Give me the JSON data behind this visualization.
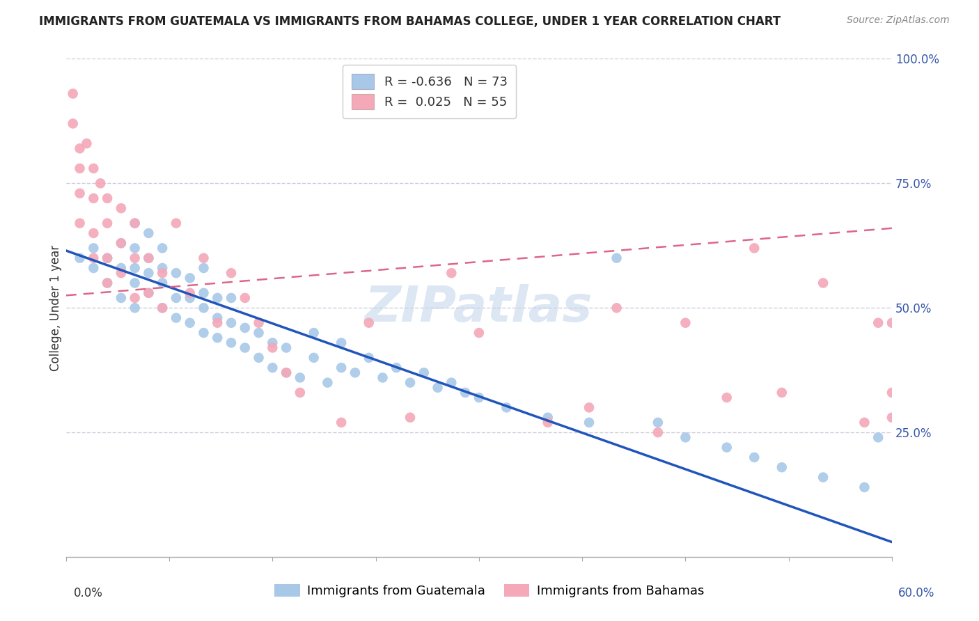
{
  "title": "IMMIGRANTS FROM GUATEMALA VS IMMIGRANTS FROM BAHAMAS COLLEGE, UNDER 1 YEAR CORRELATION CHART",
  "source": "Source: ZipAtlas.com",
  "ylabel": "College, Under 1 year",
  "legend_labels": [
    "Immigrants from Guatemala",
    "Immigrants from Bahamas"
  ],
  "legend_R": [
    -0.636,
    0.025
  ],
  "legend_N": [
    73,
    55
  ],
  "xlim": [
    0.0,
    0.6
  ],
  "ylim": [
    0.0,
    1.0
  ],
  "yticks": [
    0.25,
    0.5,
    0.75,
    1.0
  ],
  "ytick_labels": [
    "25.0%",
    "50.0%",
    "75.0%",
    "100.0%"
  ],
  "blue_color": "#a8c8e8",
  "pink_color": "#f4a8b8",
  "blue_line_color": "#2255bb",
  "pink_line_color": "#dd6688",
  "grid_color": "#ccccdd",
  "background_color": "#ffffff",
  "watermark_text": "ZIPatlas",
  "blue_scatter_x": [
    0.01,
    0.02,
    0.02,
    0.03,
    0.03,
    0.04,
    0.04,
    0.04,
    0.05,
    0.05,
    0.05,
    0.05,
    0.05,
    0.06,
    0.06,
    0.06,
    0.06,
    0.07,
    0.07,
    0.07,
    0.07,
    0.08,
    0.08,
    0.08,
    0.09,
    0.09,
    0.09,
    0.1,
    0.1,
    0.1,
    0.1,
    0.11,
    0.11,
    0.11,
    0.12,
    0.12,
    0.12,
    0.13,
    0.13,
    0.14,
    0.14,
    0.15,
    0.15,
    0.16,
    0.16,
    0.17,
    0.18,
    0.18,
    0.19,
    0.2,
    0.2,
    0.21,
    0.22,
    0.23,
    0.24,
    0.25,
    0.26,
    0.27,
    0.28,
    0.29,
    0.3,
    0.32,
    0.35,
    0.38,
    0.4,
    0.43,
    0.45,
    0.48,
    0.5,
    0.52,
    0.55,
    0.58,
    0.59
  ],
  "blue_scatter_y": [
    0.6,
    0.58,
    0.62,
    0.55,
    0.6,
    0.52,
    0.58,
    0.63,
    0.5,
    0.55,
    0.58,
    0.62,
    0.67,
    0.53,
    0.57,
    0.6,
    0.65,
    0.5,
    0.55,
    0.58,
    0.62,
    0.48,
    0.52,
    0.57,
    0.47,
    0.52,
    0.56,
    0.45,
    0.5,
    0.53,
    0.58,
    0.44,
    0.48,
    0.52,
    0.43,
    0.47,
    0.52,
    0.42,
    0.46,
    0.4,
    0.45,
    0.38,
    0.43,
    0.37,
    0.42,
    0.36,
    0.4,
    0.45,
    0.35,
    0.38,
    0.43,
    0.37,
    0.4,
    0.36,
    0.38,
    0.35,
    0.37,
    0.34,
    0.35,
    0.33,
    0.32,
    0.3,
    0.28,
    0.27,
    0.6,
    0.27,
    0.24,
    0.22,
    0.2,
    0.18,
    0.16,
    0.14,
    0.24
  ],
  "pink_scatter_x": [
    0.005,
    0.005,
    0.01,
    0.01,
    0.01,
    0.01,
    0.015,
    0.02,
    0.02,
    0.02,
    0.02,
    0.025,
    0.03,
    0.03,
    0.03,
    0.03,
    0.04,
    0.04,
    0.04,
    0.05,
    0.05,
    0.05,
    0.06,
    0.06,
    0.07,
    0.07,
    0.08,
    0.09,
    0.1,
    0.11,
    0.12,
    0.13,
    0.14,
    0.15,
    0.16,
    0.17,
    0.2,
    0.22,
    0.25,
    0.28,
    0.3,
    0.35,
    0.38,
    0.4,
    0.43,
    0.45,
    0.48,
    0.5,
    0.52,
    0.55,
    0.58,
    0.59,
    0.6,
    0.6,
    0.6
  ],
  "pink_scatter_y": [
    0.93,
    0.87,
    0.82,
    0.78,
    0.73,
    0.67,
    0.83,
    0.78,
    0.72,
    0.65,
    0.6,
    0.75,
    0.72,
    0.67,
    0.6,
    0.55,
    0.7,
    0.63,
    0.57,
    0.67,
    0.6,
    0.52,
    0.6,
    0.53,
    0.57,
    0.5,
    0.67,
    0.53,
    0.6,
    0.47,
    0.57,
    0.52,
    0.47,
    0.42,
    0.37,
    0.33,
    0.27,
    0.47,
    0.28,
    0.57,
    0.45,
    0.27,
    0.3,
    0.5,
    0.25,
    0.47,
    0.32,
    0.62,
    0.33,
    0.55,
    0.27,
    0.47,
    0.33,
    0.28,
    0.47
  ],
  "blue_trendline_x": [
    0.0,
    0.6
  ],
  "blue_trendline_y": [
    0.615,
    0.03
  ],
  "pink_trendline_x": [
    0.0,
    0.6
  ],
  "pink_trendline_y": [
    0.525,
    0.66
  ],
  "title_fontsize": 12,
  "source_fontsize": 10,
  "axis_label_fontsize": 12,
  "tick_fontsize": 12,
  "legend_fontsize": 13,
  "watermark_fontsize": 52,
  "watermark_color": "#c5d8ec",
  "watermark_alpha": 0.6,
  "xtick_positions": [
    0.0,
    0.075,
    0.15,
    0.225,
    0.3,
    0.375,
    0.45,
    0.525,
    0.6
  ],
  "xlabel_left_label": "0.0%",
  "xlabel_right_label": "60.0%"
}
